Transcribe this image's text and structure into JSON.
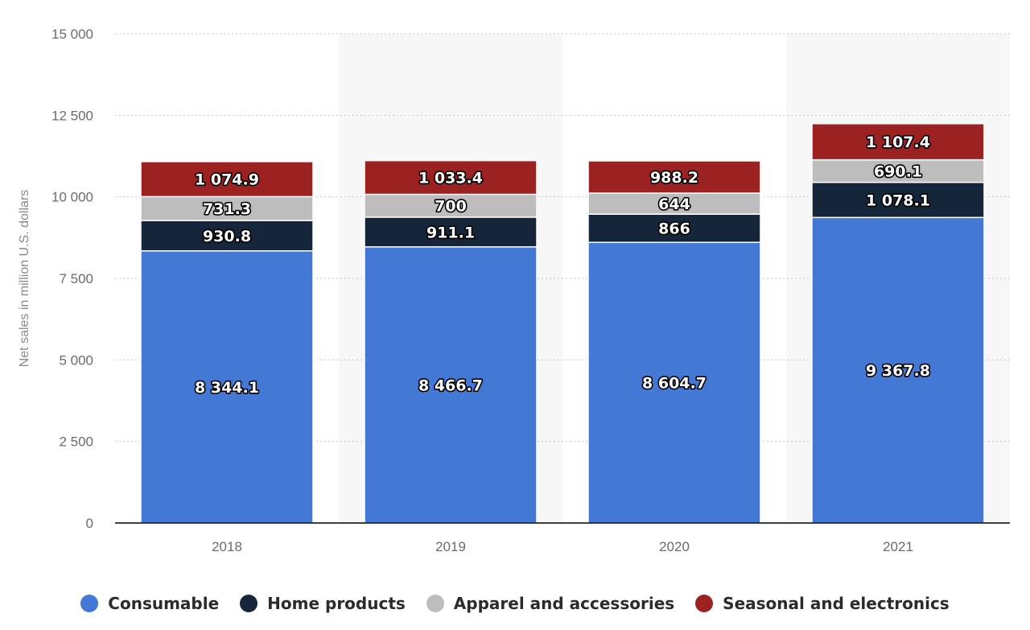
{
  "chart_data": {
    "type": "bar",
    "stacked": true,
    "categories": [
      "2018",
      "2019",
      "2020",
      "2021"
    ],
    "series": [
      {
        "name": "Consumable",
        "color": "#4378d4",
        "values": [
          8344.1,
          8466.7,
          8604.7,
          9367.8
        ],
        "labels": [
          "8 344.1",
          "8 466.7",
          "8 604.7",
          "9 367.8"
        ]
      },
      {
        "name": "Home products",
        "color": "#15253a",
        "values": [
          930.8,
          911.1,
          866,
          1078.1
        ],
        "labels": [
          "930.8",
          "911.1",
          "866",
          "1 078.1"
        ]
      },
      {
        "name": "Apparel and accessories",
        "color": "#bdbdbd",
        "values": [
          731.3,
          700,
          644,
          690.1
        ],
        "labels": [
          "731.3",
          "700",
          "644",
          "690.1"
        ]
      },
      {
        "name": "Seasonal and electronics",
        "color": "#9b2221",
        "values": [
          1074.9,
          1033.4,
          988.2,
          1107.4
        ],
        "labels": [
          "1 074.9",
          "1 033.4",
          "988.2",
          "1 107.4"
        ]
      }
    ],
    "ylabel": "Net sales in million U.S. dollars",
    "xlabel": "",
    "ylim": [
      0,
      15000
    ],
    "yticks": [
      0,
      2500,
      5000,
      7500,
      10000,
      12500,
      15000
    ],
    "ytick_labels": [
      "0",
      "2 500",
      "5 000",
      "7 500",
      "10 000",
      "12 500",
      "15 000"
    ],
    "grid": true,
    "legend_position": "bottom"
  },
  "legend": {
    "items": [
      {
        "label": "Consumable",
        "color": "#4378d4"
      },
      {
        "label": "Home products",
        "color": "#15253a"
      },
      {
        "label": "Apparel and accessories",
        "color": "#bdbdbd"
      },
      {
        "label": "Seasonal and electronics",
        "color": "#9b2221"
      }
    ]
  }
}
